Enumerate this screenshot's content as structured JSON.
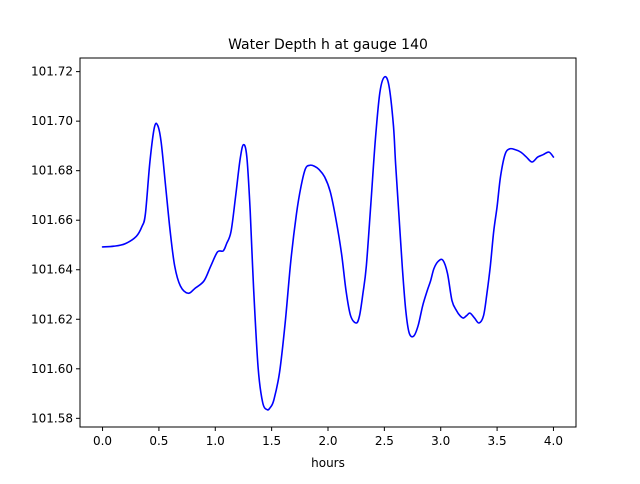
{
  "chart_data": {
    "type": "line",
    "title": "Water Depth h at gauge 140",
    "xlabel": "hours",
    "ylabel": "",
    "xlim": [
      -0.2,
      4.2
    ],
    "ylim": [
      101.5765,
      101.7255
    ],
    "xticks": [
      0.0,
      0.5,
      1.0,
      1.5,
      2.0,
      2.5,
      3.0,
      3.5,
      4.0
    ],
    "xtick_labels": [
      "0.0",
      "0.5",
      "1.0",
      "1.5",
      "2.0",
      "2.5",
      "3.0",
      "3.5",
      "4.0"
    ],
    "yticks": [
      101.58,
      101.6,
      101.62,
      101.64,
      101.66,
      101.68,
      101.7,
      101.72
    ],
    "ytick_labels": [
      "101.58",
      "101.60",
      "101.62",
      "101.64",
      "101.66",
      "101.68",
      "101.70",
      "101.72"
    ],
    "grid": false,
    "series": [
      {
        "color": "#0000ff",
        "x": [
          0.0,
          0.1,
          0.2,
          0.3,
          0.35,
          0.38,
          0.42,
          0.46,
          0.49,
          0.52,
          0.56,
          0.6,
          0.64,
          0.69,
          0.76,
          0.82,
          0.9,
          0.96,
          1.02,
          1.07,
          1.1,
          1.14,
          1.18,
          1.22,
          1.25,
          1.28,
          1.31,
          1.34,
          1.38,
          1.42,
          1.46,
          1.49,
          1.52,
          1.57,
          1.62,
          1.67,
          1.72,
          1.76,
          1.8,
          1.84,
          1.88,
          1.92,
          1.97,
          2.02,
          2.07,
          2.12,
          2.16,
          2.2,
          2.25,
          2.28,
          2.31,
          2.34,
          2.38,
          2.42,
          2.46,
          2.5,
          2.54,
          2.58,
          2.6,
          2.63,
          2.66,
          2.69,
          2.72,
          2.76,
          2.8,
          2.84,
          2.88,
          2.91,
          2.94,
          2.98,
          3.02,
          3.06,
          3.1,
          3.14,
          3.17,
          3.2,
          3.23,
          3.26,
          3.3,
          3.34,
          3.38,
          3.41,
          3.44,
          3.47,
          3.5,
          3.53,
          3.57,
          3.61,
          3.66,
          3.71,
          3.76,
          3.81,
          3.86,
          3.91,
          3.96,
          4.0
        ],
        "y": [
          101.6492,
          101.6495,
          101.6505,
          101.6535,
          101.6575,
          101.6625,
          101.6835,
          101.6975,
          101.6982,
          101.6915,
          101.6735,
          101.6555,
          101.6415,
          101.6335,
          101.6305,
          101.6325,
          101.6355,
          101.6415,
          101.6472,
          101.6476,
          101.6505,
          101.6555,
          101.6695,
          101.6845,
          101.6905,
          101.6855,
          101.6635,
          101.6325,
          101.6005,
          101.5865,
          101.5835,
          101.5845,
          101.5875,
          101.5985,
          101.6185,
          101.6435,
          101.6625,
          101.6735,
          101.6808,
          101.6822,
          101.6818,
          101.6805,
          101.6775,
          101.6715,
          101.6605,
          101.6465,
          101.6315,
          101.6215,
          101.6185,
          101.6215,
          101.6305,
          101.6415,
          101.6665,
          101.6925,
          101.7115,
          101.7178,
          101.7145,
          101.6985,
          101.6825,
          101.6615,
          101.6405,
          101.6235,
          101.6145,
          101.6132,
          101.6175,
          101.6255,
          101.6315,
          101.6355,
          101.6405,
          101.6435,
          101.6438,
          101.6385,
          101.6275,
          101.6235,
          101.6215,
          101.6205,
          101.6215,
          101.6225,
          101.6205,
          101.6185,
          101.6215,
          101.6305,
          101.6415,
          101.6555,
          101.6655,
          101.6775,
          101.6865,
          101.6888,
          101.6885,
          101.6875,
          101.6855,
          101.6835,
          101.6855,
          101.6865,
          101.6875,
          101.6855
        ]
      }
    ]
  }
}
